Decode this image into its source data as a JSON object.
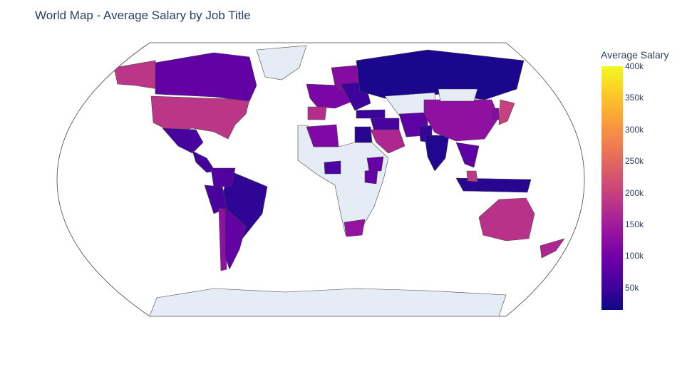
{
  "title": "World Map - Average Salary by Job Title",
  "colorbar": {
    "title": "Average Salary",
    "ticks": [
      "400k",
      "350k",
      "300k",
      "250k",
      "200k",
      "150k",
      "100k",
      "50k"
    ],
    "tick_values": [
      400000,
      350000,
      300000,
      250000,
      200000,
      150000,
      100000,
      50000
    ],
    "range": [
      15000,
      400000
    ],
    "colorscale": [
      "#0d0887",
      "#46039f",
      "#7201a8",
      "#9c179e",
      "#bd3786",
      "#d8576b",
      "#ed7953",
      "#fb9f3a",
      "#fdca26",
      "#f0f921"
    ]
  },
  "map": {
    "projection": "natural earth",
    "no_data_color": "#e5ecf6",
    "border_color": "#444444"
  },
  "chart_data": {
    "type": "choropleth",
    "title": "World Map - Average Salary by Job Title",
    "colorbar_title": "Average Salary",
    "zrange": [
      15000,
      400000
    ],
    "regions": [
      {
        "name": "United States",
        "value": 185000
      },
      {
        "name": "Alaska",
        "value": 185000
      },
      {
        "name": "Canada",
        "value": 85000
      },
      {
        "name": "Greenland",
        "value": null
      },
      {
        "name": "Mexico",
        "value": 60000
      },
      {
        "name": "Central America",
        "value": 55000
      },
      {
        "name": "Brazil",
        "value": 40000
      },
      {
        "name": "Colombia",
        "value": 70000
      },
      {
        "name": "Peru",
        "value": 60000
      },
      {
        "name": "Chile",
        "value": 130000
      },
      {
        "name": "Argentina",
        "value": 85000
      },
      {
        "name": "Western Europe",
        "value": 110000
      },
      {
        "name": "Spain",
        "value": 175000
      },
      {
        "name": "Scandinavia",
        "value": 120000
      },
      {
        "name": "Eastern Europe",
        "value": 50000
      },
      {
        "name": "Russia",
        "value": 25000
      },
      {
        "name": "Kazakhstan",
        "value": null
      },
      {
        "name": "Turkey",
        "value": 50000
      },
      {
        "name": "Middle East",
        "value": 60000
      },
      {
        "name": "Saudi Arabia",
        "value": 165000
      },
      {
        "name": "Algeria",
        "value": 115000
      },
      {
        "name": "Egypt",
        "value": 35000
      },
      {
        "name": "Nigeria",
        "value": 65000
      },
      {
        "name": "Kenya",
        "value": 85000
      },
      {
        "name": "Ethiopia",
        "value": 90000
      },
      {
        "name": "South Africa",
        "value": 135000
      },
      {
        "name": "Iran",
        "value": 80000
      },
      {
        "name": "Pakistan",
        "value": 45000
      },
      {
        "name": "India",
        "value": 30000
      },
      {
        "name": "China",
        "value": 130000
      },
      {
        "name": "Mongolia",
        "value": null
      },
      {
        "name": "Japan",
        "value": 200000
      },
      {
        "name": "Korea",
        "value": 120000
      },
      {
        "name": "Southeast Asia",
        "value": 80000
      },
      {
        "name": "Indonesia",
        "value": 35000
      },
      {
        "name": "Malaysia",
        "value": 190000
      },
      {
        "name": "Australia",
        "value": 180000
      },
      {
        "name": "New Zealand",
        "value": 165000
      },
      {
        "name": "Antarctica",
        "value": null
      }
    ]
  }
}
